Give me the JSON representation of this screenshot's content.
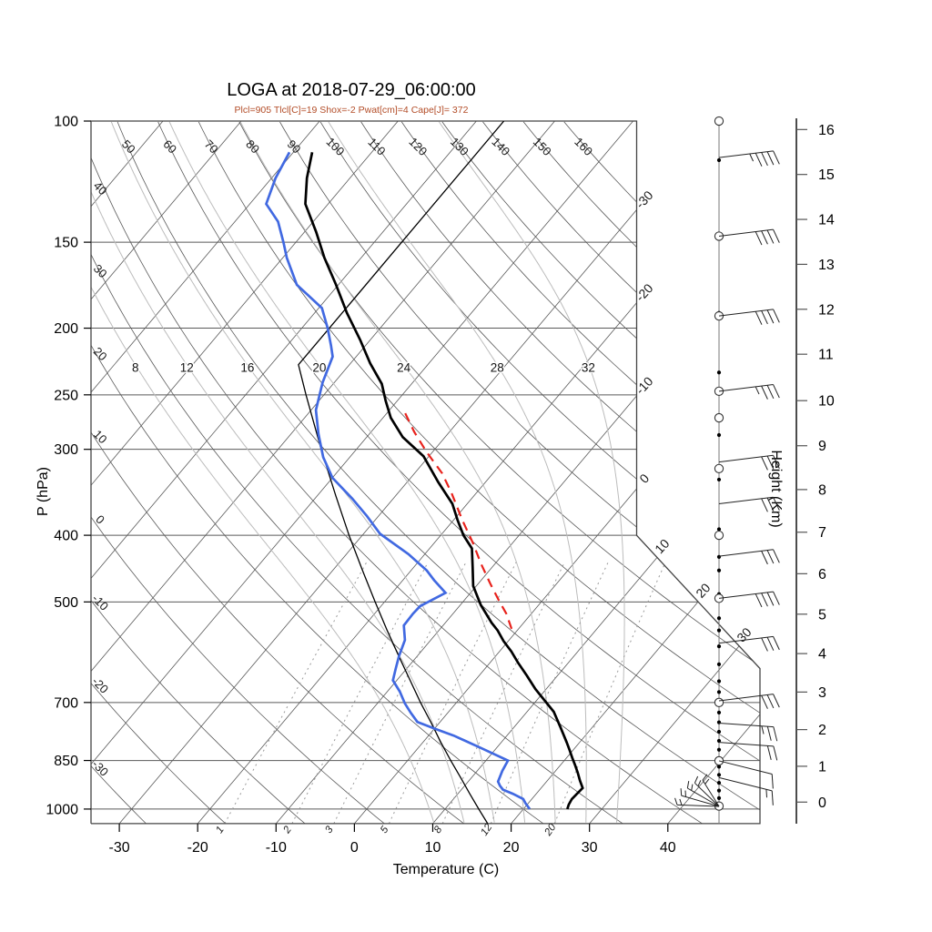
{
  "header": {
    "title": "LOGA at 2018-07-29_06:00:00",
    "params": "Plcl=905 Tlcl[C]=19 Shox=-2 Pwat[cm]=4 Cape[J]= 372"
  },
  "axes": {
    "pressure": {
      "label": "P (hPa)",
      "ticks": [
        100,
        150,
        200,
        250,
        300,
        400,
        500,
        700,
        850,
        1000
      ]
    },
    "temperature": {
      "label": "Temperature (C)",
      "ticks": [
        -30,
        -20,
        -10,
        0,
        10,
        20,
        30,
        40
      ]
    },
    "height": {
      "label": "Height (Km)",
      "ticks": [
        0,
        1,
        2,
        3,
        4,
        5,
        6,
        7,
        8,
        9,
        10,
        11,
        12,
        13,
        14,
        15,
        16
      ]
    }
  },
  "background": {
    "theta_top_labels": [
      50,
      60,
      70,
      80,
      90,
      100,
      110,
      120,
      130,
      140,
      150,
      160
    ],
    "theta_left_labels": [
      40,
      30,
      20,
      10,
      0,
      -10,
      -20,
      -30
    ],
    "isotherm_right_labels": [
      -30,
      -20,
      -10,
      0
    ],
    "isotherm_cut_labels": [
      10,
      20,
      30
    ],
    "moist_adiabat_labels": [
      8,
      12,
      16,
      20,
      24,
      28,
      32
    ],
    "mixing_ratio_labels": [
      1,
      2,
      3,
      5,
      8,
      12,
      20
    ]
  },
  "colors": {
    "temperature": "#000000",
    "dewpoint": "#4169e1",
    "parcel": "#e8221c",
    "reference": "#000000",
    "subtitle": "#b34d28",
    "grid_dark": "#5a5a5a",
    "grid_moist": "#bcbcbc",
    "grid_mix": "#9a9a9a",
    "frame": "#444444"
  },
  "chart_data": {
    "type": "skewt-log-p",
    "station": "LOGA",
    "datetime": "2018-07-29_06:00:00",
    "title": "LOGA at 2018-07-29_06:00:00",
    "parameters": {
      "Plcl": 905,
      "Tlcl_C": 19,
      "Shox": -2,
      "Pwat_cm": 4,
      "Cape_J": 372
    },
    "pressure_range_hPa": [
      100,
      1050
    ],
    "temp_axis_range_C": [
      -30,
      40
    ],
    "height_axis_range_km": [
      0,
      16
    ],
    "series": {
      "temperature_C": [
        [
          1000,
          25.6
        ],
        [
          985,
          25.3
        ],
        [
          967,
          25.1
        ],
        [
          950,
          25.2
        ],
        [
          932,
          25.3
        ],
        [
          910,
          24.2
        ],
        [
          885,
          23.0
        ],
        [
          862,
          21.8
        ],
        [
          842,
          20.7
        ],
        [
          820,
          19.5
        ],
        [
          799,
          18.3
        ],
        [
          760,
          15.9
        ],
        [
          722,
          13.4
        ],
        [
          695,
          11.0
        ],
        [
          669,
          8.6
        ],
        [
          640,
          6.1
        ],
        [
          612,
          3.5
        ],
        [
          590,
          1.5
        ],
        [
          570,
          -0.6
        ],
        [
          550,
          -2.5
        ],
        [
          536,
          -4.1
        ],
        [
          505,
          -7.4
        ],
        [
          474,
          -10.4
        ],
        [
          445,
          -12.5
        ],
        [
          418,
          -14.6
        ],
        [
          400,
          -17.1
        ],
        [
          380,
          -19.5
        ],
        [
          360,
          -21.9
        ],
        [
          335,
          -26.0
        ],
        [
          307,
          -30.7
        ],
        [
          288,
          -35.4
        ],
        [
          270,
          -39.0
        ],
        [
          255,
          -41.5
        ],
        [
          241,
          -43.8
        ],
        [
          225,
          -47.5
        ],
        [
          208,
          -51.3
        ],
        [
          190,
          -55.9
        ],
        [
          173,
          -60.3
        ],
        [
          158,
          -64.7
        ],
        [
          145,
          -68.5
        ],
        [
          132,
          -72.9
        ],
        [
          121,
          -75.5
        ],
        [
          111,
          -77.6
        ]
      ],
      "dewpoint_C": [
        [
          1000,
          20.8
        ],
        [
          990,
          20.2
        ],
        [
          980,
          19.6
        ],
        [
          967,
          18.9
        ],
        [
          950,
          17.0
        ],
        [
          937,
          15.3
        ],
        [
          925,
          14.5
        ],
        [
          912,
          13.8
        ],
        [
          880,
          13.2
        ],
        [
          850,
          12.8
        ],
        [
          815,
          8.0
        ],
        [
          782,
          3.2
        ],
        [
          765,
          0.2
        ],
        [
          747,
          -2.9
        ],
        [
          725,
          -4.7
        ],
        [
          702,
          -6.5
        ],
        [
          675,
          -8.4
        ],
        [
          650,
          -10.5
        ],
        [
          625,
          -11.4
        ],
        [
          600,
          -12.3
        ],
        [
          568,
          -13.3
        ],
        [
          541,
          -15.0
        ],
        [
          520,
          -15.1
        ],
        [
          507,
          -15.0
        ],
        [
          485,
          -13.2
        ],
        [
          465,
          -16.0
        ],
        [
          450,
          -18.0
        ],
        [
          426,
          -22.1
        ],
        [
          398,
          -27.9
        ],
        [
          375,
          -31.5
        ],
        [
          354,
          -35.2
        ],
        [
          330,
          -40.0
        ],
        [
          308,
          -43.4
        ],
        [
          285,
          -46.5
        ],
        [
          263,
          -49.4
        ],
        [
          240,
          -51.5
        ],
        [
          220,
          -53.0
        ],
        [
          212,
          -54.4
        ],
        [
          200,
          -56.7
        ],
        [
          187,
          -59.6
        ],
        [
          173,
          -65.3
        ],
        [
          158,
          -69.5
        ],
        [
          150,
          -71.6
        ],
        [
          140,
          -74.5
        ],
        [
          132,
          -77.9
        ],
        [
          121,
          -79.5
        ],
        [
          111,
          -80.5
        ]
      ],
      "parcel_C": [
        [
          547,
          -0.9
        ],
        [
          520,
          -3.2
        ],
        [
          500,
          -5.3
        ],
        [
          470,
          -8.5
        ],
        [
          440,
          -11.8
        ],
        [
          411,
          -15.0
        ],
        [
          380,
          -18.9
        ],
        [
          347,
          -23.2
        ],
        [
          325,
          -26.5
        ],
        [
          303,
          -30.7
        ],
        [
          283,
          -34.5
        ],
        [
          263,
          -38.2
        ]
      ],
      "std_atmosphere_C": [
        [
          1050,
          17.0
        ],
        [
          1000,
          14.3
        ],
        [
          950,
          11.5
        ],
        [
          900,
          8.6
        ],
        [
          850,
          5.5
        ],
        [
          800,
          2.3
        ],
        [
          750,
          -1.0
        ],
        [
          700,
          -4.6
        ],
        [
          650,
          -8.3
        ],
        [
          600,
          -12.3
        ],
        [
          550,
          -16.6
        ],
        [
          500,
          -21.2
        ],
        [
          450,
          -26.2
        ],
        [
          400,
          -31.7
        ],
        [
          350,
          -37.7
        ],
        [
          300,
          -44.5
        ],
        [
          250,
          -52.3
        ],
        [
          226,
          -56.5
        ],
        [
          200,
          -56.5
        ],
        [
          150,
          -56.5
        ],
        [
          100,
          -56.5
        ]
      ]
    },
    "wind": {
      "barbs": [
        {
          "p": 113,
          "full": 4,
          "half": true
        },
        {
          "p": 147,
          "full": 4,
          "half": false
        },
        {
          "p": 192,
          "full": 4,
          "half": false
        },
        {
          "p": 247,
          "full": 3,
          "half": true
        },
        {
          "p": 313,
          "full": 3,
          "half": false
        },
        {
          "p": 360,
          "full": 3,
          "half": false
        },
        {
          "p": 429,
          "full": 3,
          "half": false
        },
        {
          "p": 494,
          "full": 4,
          "half": false
        },
        {
          "p": 574,
          "full": 3,
          "half": false
        },
        {
          "p": 696,
          "full": 3,
          "half": false
        },
        {
          "p": 750,
          "full": 2,
          "half": true
        },
        {
          "p": 800,
          "full": 2,
          "half": false
        },
        {
          "p": 851,
          "full": 1,
          "half": false
        },
        {
          "p": 900,
          "full": 1,
          "half": true
        }
      ],
      "surface_fan_angles_deg": [
        182,
        196,
        210,
        224,
        238
      ],
      "dot_levels_hPa": [
        114,
        146,
        190,
        232,
        286,
        332,
        392,
        430,
        450,
        487,
        528,
        550,
        580,
        616,
        652,
        676,
        700,
        724,
        748,
        772,
        796,
        820,
        844,
        868,
        892,
        916,
        940,
        964,
        988
      ],
      "circle_levels_hPa": [
        100,
        147,
        192,
        247,
        270,
        320,
        400,
        494,
        700,
        851,
        990
      ]
    }
  }
}
